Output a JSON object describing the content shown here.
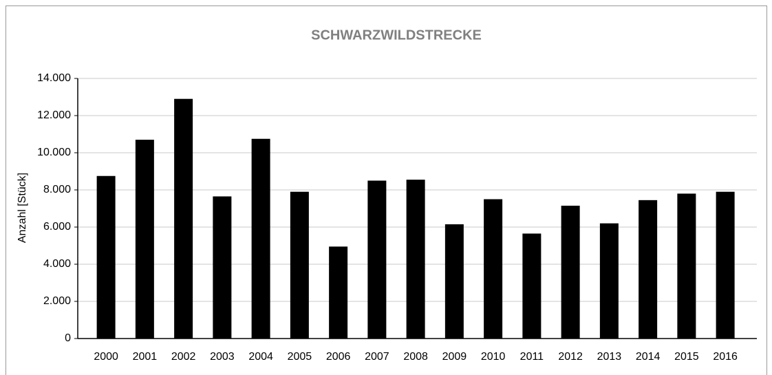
{
  "chart_data": {
    "type": "bar",
    "title": "SCHWARZWILDSTRECKE",
    "y_label": "Anzahl [Stück]",
    "categories": [
      "2000",
      "2001",
      "2002",
      "2003",
      "2004",
      "2005",
      "2006",
      "2007",
      "2008",
      "2009",
      "2010",
      "2011",
      "2012",
      "2013",
      "2014",
      "2015",
      "2016"
    ],
    "values": [
      8750,
      10700,
      12900,
      7650,
      10750,
      7900,
      4950,
      8500,
      8550,
      6150,
      7500,
      5650,
      7150,
      6200,
      7450,
      7800,
      7900
    ],
    "color": "#000000",
    "ylim": [
      0,
      14000
    ],
    "yticks": [
      0,
      {
        "value": 2000,
        "label": "2.000"
      },
      {
        "value": 4000,
        "label": "4.000"
      },
      {
        "value": 6000,
        "label": "6.000"
      },
      {
        "value": 8000,
        "label": "8.000"
      },
      {
        "value": 10000,
        "label": "10.000"
      },
      {
        "value": 12000,
        "label": "12.000"
      },
      {
        "value": 14000,
        "label": "14.000"
      }
    ],
    "grid": true
  }
}
